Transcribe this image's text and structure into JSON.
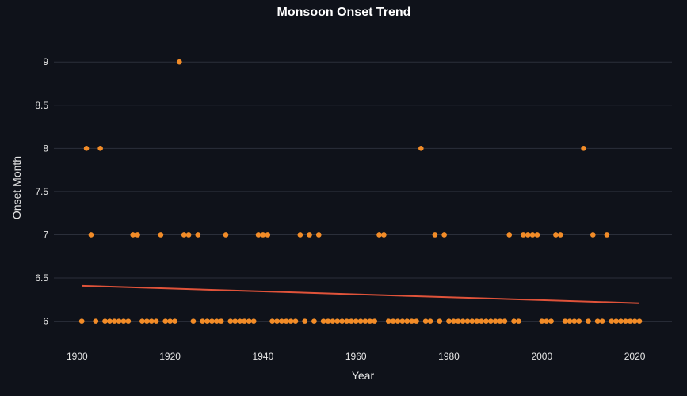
{
  "chart_data": {
    "type": "scatter",
    "title": "Monsoon Onset Trend",
    "xlabel": "Year",
    "ylabel": "Onset Month",
    "xlim": [
      1895,
      2028
    ],
    "ylim": [
      5.85,
      9.35
    ],
    "x_ticks": [
      1900,
      1920,
      1940,
      1960,
      1980,
      2000,
      2020
    ],
    "y_ticks": [
      6,
      6.5,
      7,
      7.5,
      8,
      8.5,
      9
    ],
    "grid": "horizontal",
    "colors": {
      "background": "#0f121a",
      "grid": "#2b2f3a",
      "points": "#f28c28",
      "trend": "#e0533a",
      "text": "#e6e6e6"
    },
    "series": [
      {
        "type": "scatter",
        "x": [
          1901,
          1902,
          1903,
          1904,
          1905,
          1906,
          1907,
          1908,
          1909,
          1910,
          1911,
          1912,
          1913,
          1914,
          1915,
          1916,
          1917,
          1918,
          1919,
          1920,
          1921,
          1922,
          1923,
          1924,
          1925,
          1926,
          1927,
          1928,
          1929,
          1930,
          1931,
          1932,
          1933,
          1934,
          1935,
          1936,
          1937,
          1938,
          1939,
          1940,
          1941,
          1942,
          1943,
          1944,
          1945,
          1946,
          1947,
          1948,
          1949,
          1950,
          1951,
          1952,
          1953,
          1954,
          1955,
          1956,
          1957,
          1958,
          1959,
          1960,
          1961,
          1962,
          1963,
          1964,
          1965,
          1966,
          1967,
          1968,
          1969,
          1970,
          1971,
          1972,
          1973,
          1974,
          1975,
          1976,
          1977,
          1978,
          1979,
          1980,
          1981,
          1982,
          1983,
          1984,
          1985,
          1986,
          1987,
          1988,
          1989,
          1990,
          1991,
          1992,
          1993,
          1994,
          1995,
          1996,
          1997,
          1998,
          1999,
          2000,
          2001,
          2002,
          2003,
          2004,
          2005,
          2006,
          2007,
          2008,
          2009,
          2010,
          2011,
          2012,
          2013,
          2014,
          2015,
          2016,
          2017,
          2018,
          2019,
          2020,
          2021
        ],
        "y": [
          6,
          8,
          7,
          6,
          8,
          6,
          6,
          6,
          6,
          6,
          6,
          7,
          7,
          6,
          6,
          6,
          6,
          7,
          6,
          6,
          6,
          9,
          7,
          7,
          6,
          7,
          6,
          6,
          6,
          6,
          6,
          7,
          6,
          6,
          6,
          6,
          6,
          6,
          7,
          7,
          7,
          6,
          6,
          6,
          6,
          6,
          6,
          7,
          6,
          7,
          6,
          7,
          6,
          6,
          6,
          6,
          6,
          6,
          6,
          6,
          6,
          6,
          6,
          6,
          7,
          7,
          6,
          6,
          6,
          6,
          6,
          6,
          6,
          8,
          6,
          6,
          7,
          6,
          7,
          6,
          6,
          6,
          6,
          6,
          6,
          6,
          6,
          6,
          6,
          6,
          6,
          6,
          7,
          6,
          6,
          7,
          7,
          7,
          7,
          6,
          6,
          6,
          7,
          7,
          6,
          6,
          6,
          6,
          8,
          6,
          7,
          6,
          6,
          7,
          6,
          6,
          6,
          6,
          6,
          6,
          6
        ]
      },
      {
        "type": "line",
        "x": [
          1901,
          2021
        ],
        "y": [
          6.41,
          6.21
        ]
      }
    ]
  }
}
